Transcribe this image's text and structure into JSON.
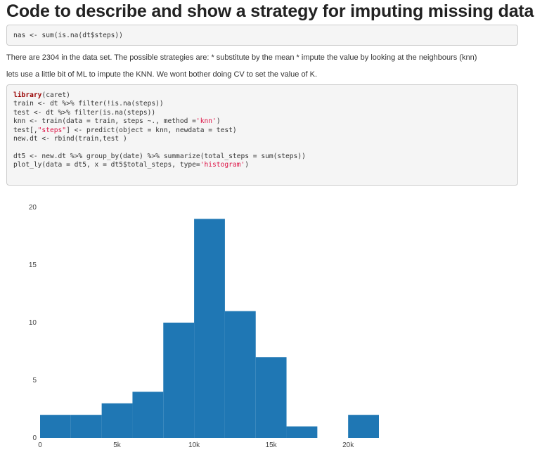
{
  "title": "Code to describe and show a strategy for imputing missing data",
  "code1": {
    "lines": [
      "nas <- sum(is.na(dt$steps))"
    ]
  },
  "para1": "There are 2304 in the data set. The possible strategies are: * substitute by the mean * impute the value by looking at the neighbours (knn)",
  "para2": "lets use a little bit of ML to impute the KNN. We wont bother doing CV to set the value of K.",
  "code2": {
    "l1_kw": "library",
    "l1_rest": "(caret)",
    "l2": "train <- dt %>% filter(!is.na(steps))",
    "l3": "test <- dt %>% filter(is.na(steps))",
    "l4_a": "knn <- train(data = train, steps ~., method =",
    "l4_str": "'knn'",
    "l4_b": ")",
    "l5_a": "test[,",
    "l5_str": "\"steps\"",
    "l5_b": "] <- predict(object = knn, newdata = test)",
    "l6": "new.dt <- rbind(train,test )",
    "l7": "",
    "l8": "dt5 <- new.dt %>% group_by(date) %>% summarize(total_steps = sum(steps))",
    "l9_a": "plot_ly(data = dt5, x = dt5$total_steps, type=",
    "l9_str": "'histogram'",
    "l9_b": ")"
  },
  "chart_data": {
    "type": "bar",
    "bin_width": 2000,
    "bins": [
      {
        "start": 0,
        "end": 2000,
        "count": 2
      },
      {
        "start": 2000,
        "end": 4000,
        "count": 2
      },
      {
        "start": 4000,
        "end": 6000,
        "count": 3
      },
      {
        "start": 6000,
        "end": 8000,
        "count": 4
      },
      {
        "start": 8000,
        "end": 10000,
        "count": 10
      },
      {
        "start": 10000,
        "end": 12000,
        "count": 19
      },
      {
        "start": 12000,
        "end": 14000,
        "count": 11
      },
      {
        "start": 14000,
        "end": 16000,
        "count": 7
      },
      {
        "start": 16000,
        "end": 18000,
        "count": 1
      },
      {
        "start": 18000,
        "end": 20000,
        "count": 0
      },
      {
        "start": 20000,
        "end": 22000,
        "count": 2
      }
    ],
    "x_ticks": [
      0,
      5000,
      10000,
      15000,
      20000
    ],
    "x_tick_labels": [
      "0",
      "5k",
      "10k",
      "15k",
      "20k"
    ],
    "y_ticks": [
      0,
      5,
      10,
      15,
      20
    ],
    "y_tick_labels": [
      "0",
      "5",
      "10",
      "15",
      "20"
    ],
    "xlim": [
      0,
      22000
    ],
    "ylim": [
      0,
      20
    ],
    "bar_color": "#1f77b4",
    "grid": false,
    "title": "",
    "xlabel": "",
    "ylabel": ""
  }
}
